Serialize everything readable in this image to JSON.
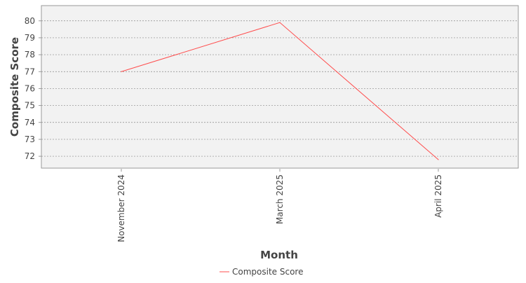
{
  "chart_data": {
    "type": "line",
    "categories": [
      "November 2024",
      "March 2025",
      "April 2025"
    ],
    "series": [
      {
        "name": "Composite Score",
        "values": [
          77.0,
          79.9,
          71.8
        ],
        "color": "#ff4d4d"
      }
    ],
    "xlabel": "Month",
    "ylabel": "Composite Score",
    "ylim": [
      71.3,
      80.9
    ],
    "yticks": [
      72,
      73,
      74,
      75,
      76,
      77,
      78,
      79,
      80
    ],
    "grid": true,
    "legend_position": "bottom-center",
    "colors": {
      "plot_background": "#f2f2f2",
      "grid": "#888888",
      "axis": "#999999",
      "text": "#444444"
    }
  }
}
